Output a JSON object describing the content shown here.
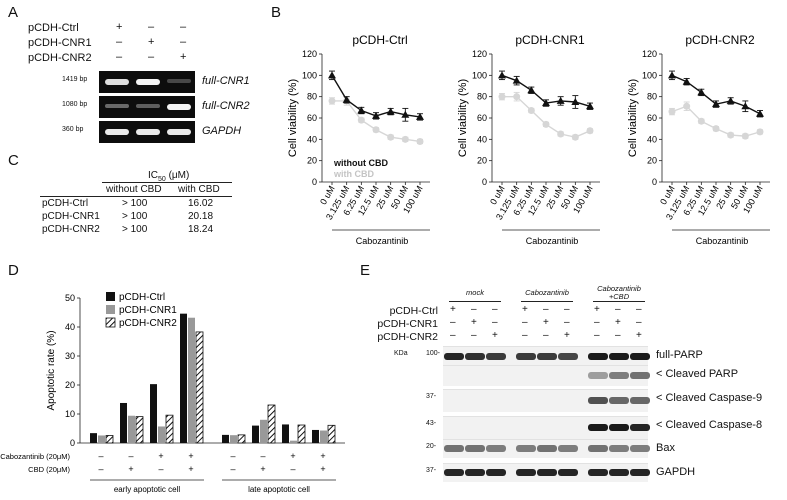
{
  "panel_labels": {
    "a": "A",
    "b": "B",
    "c": "C",
    "d": "D",
    "e": "E"
  },
  "panel_a": {
    "rows": [
      {
        "label": "pCDH-Ctrl",
        "marks": [
          "+",
          "–",
          "–"
        ]
      },
      {
        "label": "pCDH-CNR1",
        "marks": [
          "–",
          "+",
          "–"
        ]
      },
      {
        "label": "pCDH-CNR2",
        "marks": [
          "–",
          "–",
          "+"
        ]
      }
    ],
    "gels": [
      {
        "size": "1419 bp",
        "name": "full-CNR1",
        "bands": [
          0.85,
          0.95,
          0.15
        ]
      },
      {
        "size": "1080 bp",
        "name": "full-CNR2",
        "bands": [
          0.3,
          0.25,
          0.95
        ]
      },
      {
        "size": "360 bp",
        "name": "GAPDH",
        "bands": [
          0.9,
          0.9,
          0.9
        ]
      }
    ]
  },
  "panel_b": {
    "ylabel": "Cell viability (%)",
    "xgroup_label": "Cabozantinib",
    "legend": {
      "without": "without CBD",
      "with": "with CBD"
    },
    "colors": {
      "without": "#111111",
      "with": "#d6d6d6"
    }
  },
  "chart_data": [
    {
      "type": "line",
      "title": "pCDH-Ctrl",
      "categories": [
        "0 uM",
        "3.125 uM",
        "6.25 uM",
        "12.5 uM",
        "25 uM",
        "50 uM",
        "100 uM"
      ],
      "ylabel": "Cell viability (%)",
      "xlabel": "Cabozantinib",
      "ylim": [
        0,
        120
      ],
      "yticks": [
        0,
        20,
        40,
        60,
        80,
        100,
        120
      ],
      "series": [
        {
          "name": "without CBD",
          "values": [
            100,
            77,
            67,
            62,
            66,
            63,
            61
          ],
          "errors": [
            4,
            3,
            3,
            3,
            3,
            6,
            3
          ]
        },
        {
          "name": "with CBD",
          "values": [
            76,
            76,
            58,
            49,
            42,
            40,
            38
          ],
          "errors": [
            3,
            4,
            2,
            2,
            2,
            2,
            2
          ]
        }
      ]
    },
    {
      "type": "line",
      "title": "pCDH-CNR1",
      "categories": [
        "0 uM",
        "3.125 uM",
        "6.25 uM",
        "12.5 uM",
        "25 uM",
        "50 uM",
        "100 uM"
      ],
      "ylabel": "Cell viability (%)",
      "xlabel": "Cabozantinib",
      "ylim": [
        0,
        120
      ],
      "yticks": [
        0,
        20,
        40,
        60,
        80,
        100,
        120
      ],
      "series": [
        {
          "name": "without CBD",
          "values": [
            100,
            95,
            86,
            74,
            76,
            75,
            71
          ],
          "errors": [
            4,
            4,
            3,
            3,
            4,
            6,
            3
          ]
        },
        {
          "name": "with CBD",
          "values": [
            80,
            80,
            67,
            54,
            45,
            42,
            48
          ],
          "errors": [
            3,
            4,
            2,
            2,
            2,
            2,
            2
          ]
        }
      ]
    },
    {
      "type": "line",
      "title": "pCDH-CNR2",
      "categories": [
        "0 uM",
        "3.125 uM",
        "6.25 uM",
        "12.5 uM",
        "25 uM",
        "50 uM",
        "100 uM"
      ],
      "ylabel": "Cell viability (%)",
      "xlabel": "Cabozantinib",
      "ylim": [
        0,
        120
      ],
      "yticks": [
        0,
        20,
        40,
        60,
        80,
        100,
        120
      ],
      "series": [
        {
          "name": "without CBD",
          "values": [
            100,
            94,
            84,
            73,
            76,
            71,
            64
          ],
          "errors": [
            4,
            3,
            3,
            3,
            3,
            5,
            3
          ]
        },
        {
          "name": "with CBD",
          "values": [
            66,
            71,
            57,
            50,
            44,
            43,
            47
          ],
          "errors": [
            3,
            4,
            2,
            2,
            2,
            2,
            2
          ]
        }
      ]
    },
    {
      "type": "bar",
      "title": "",
      "ylabel": "Apoptotic rate (%)",
      "ylim": [
        0,
        50
      ],
      "yticks": [
        0,
        10,
        20,
        30,
        40,
        50
      ],
      "groups": [
        "early apoptotic cell",
        "late apoptotic cell"
      ],
      "conditions": [
        {
          "cabozantinib": "–",
          "cbd": "–"
        },
        {
          "cabozantinib": "–",
          "cbd": "+"
        },
        {
          "cabozantinib": "+",
          "cbd": "–"
        },
        {
          "cabozantinib": "+",
          "cbd": "+"
        }
      ],
      "row_labels": {
        "cabozantinib": "Cabozantinib (20μM)",
        "cbd": "CBD (20μM)"
      },
      "series": [
        {
          "name": "pCDH-Ctrl",
          "values": [
            3.4,
            13.8,
            20.3,
            44.6,
            2.8,
            6.0,
            6.4,
            4.5
          ]
        },
        {
          "name": "pCDH-CNR1",
          "values": [
            2.6,
            9.4,
            5.7,
            43.2,
            2.7,
            8.0,
            0.8,
            4.3
          ]
        },
        {
          "name": "pCDH-CNR2",
          "values": [
            2.6,
            9.1,
            9.6,
            38.3,
            2.8,
            13.1,
            6.2,
            6.1
          ]
        }
      ]
    }
  ],
  "panel_c": {
    "header": "IC",
    "header_sub": "50",
    "header_unit": " (μM)",
    "columns": [
      "without CBD",
      "with CBD"
    ],
    "rows": [
      {
        "name": "pCDH-Ctrl",
        "without": "> 100",
        "with": "16.02"
      },
      {
        "name": "pCDH-CNR1",
        "without": "> 100",
        "with": "20.18"
      },
      {
        "name": "pCDH-CNR2",
        "without": "> 100",
        "with": "18.24"
      }
    ]
  },
  "panel_e": {
    "groups": [
      "mock",
      "Cabozantinib",
      "Cabozantinib\n+CBD"
    ],
    "rows": [
      {
        "label": "pCDH-Ctrl",
        "marks": [
          "+",
          "–",
          "–",
          "+",
          "–",
          "–",
          "+",
          "–",
          "–"
        ]
      },
      {
        "label": "pCDH-CNR1",
        "marks": [
          "–",
          "+",
          "–",
          "–",
          "+",
          "–",
          "–",
          "+",
          "–"
        ]
      },
      {
        "label": "pCDH-CNR2",
        "marks": [
          "–",
          "–",
          "+",
          "–",
          "–",
          "+",
          "–",
          "–",
          "+"
        ]
      }
    ],
    "kda_label": "KDa",
    "blots": [
      {
        "name": "full-PARP",
        "kda": "100-",
        "intensity": [
          0.9,
          0.85,
          0.8,
          0.8,
          0.8,
          0.75,
          0.95,
          0.95,
          0.95
        ]
      },
      {
        "name": "< Cleaved PARP",
        "kda": "",
        "intensity": [
          0,
          0,
          0,
          0,
          0,
          0,
          0.35,
          0.5,
          0.55
        ]
      },
      {
        "name": "< Cleaved Caspase-9",
        "kda": "37-",
        "intensity": [
          0,
          0,
          0,
          0,
          0,
          0,
          0.7,
          0.6,
          0.6
        ]
      },
      {
        "name": "< Cleaved Caspase-8",
        "kda": "43-",
        "intensity": [
          0,
          0,
          0,
          0,
          0,
          0,
          0.95,
          0.95,
          0.9
        ]
      },
      {
        "name": "Bax",
        "kda": "20-",
        "intensity": [
          0.55,
          0.55,
          0.5,
          0.5,
          0.55,
          0.5,
          0.55,
          0.5,
          0.5
        ]
      },
      {
        "name": "GAPDH",
        "kda": "37-",
        "intensity": [
          0.9,
          0.9,
          0.9,
          0.9,
          0.9,
          0.9,
          0.9,
          0.9,
          0.9
        ]
      }
    ]
  }
}
